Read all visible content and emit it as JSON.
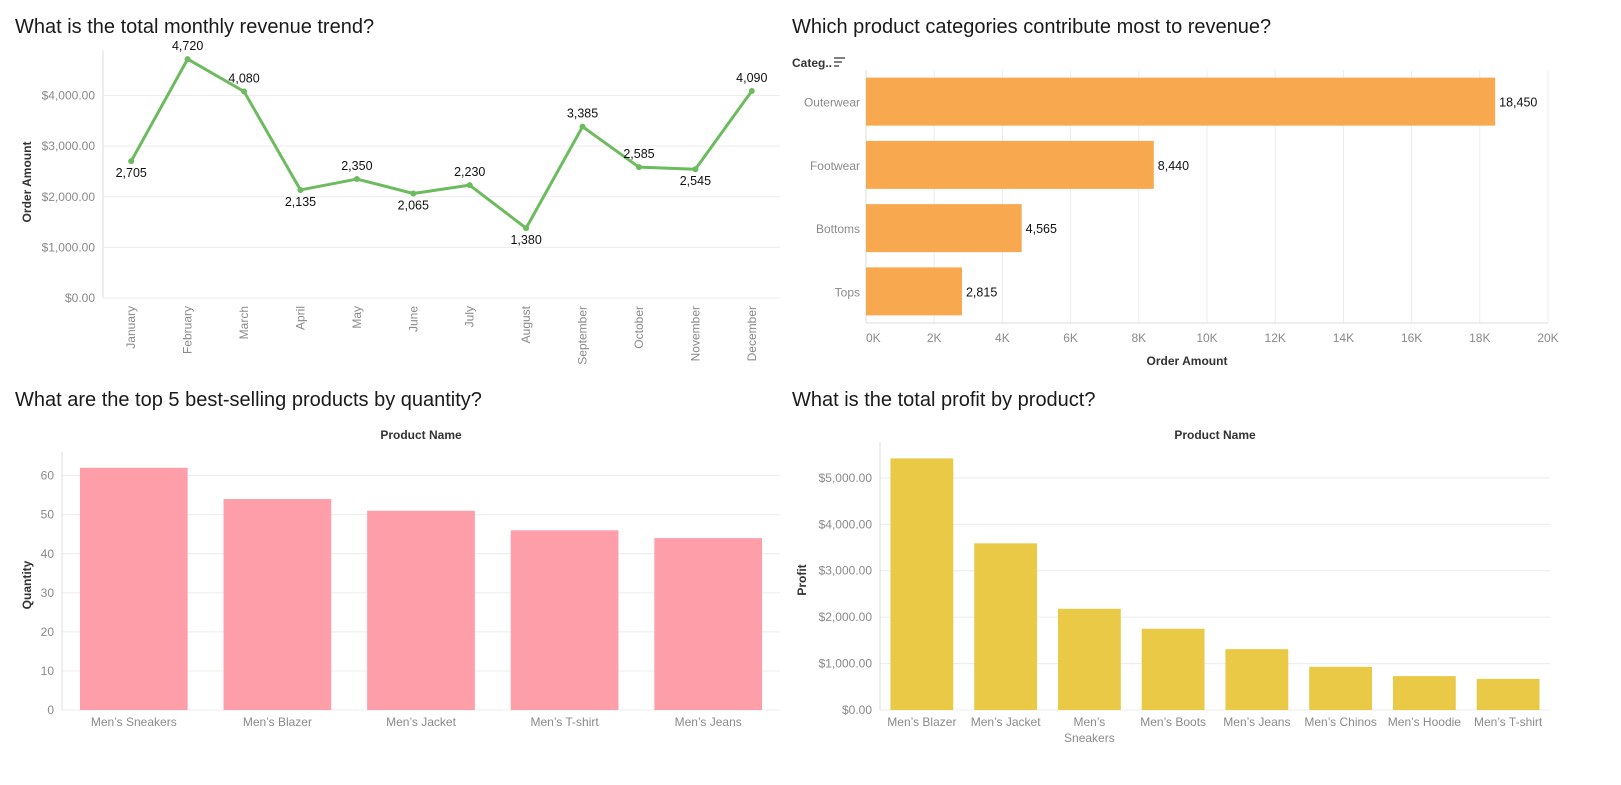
{
  "colors": {
    "line": "#6dbb5f",
    "outerwear": "#f8a84f",
    "quantity": "#fd9ea9",
    "profit": "#eac946",
    "grid": "#ececec",
    "tick": "#8a8a8a"
  },
  "icons": {
    "sort": "sort-descending-icon"
  },
  "chart_data": [
    {
      "type": "line",
      "title": "What is the total monthly revenue trend?",
      "ylabel": "Order Amount",
      "xlabel": "",
      "categories": [
        "January",
        "February",
        "March",
        "April",
        "May",
        "June",
        "July",
        "August",
        "September",
        "October",
        "November",
        "December"
      ],
      "values": [
        2705,
        4720,
        4080,
        2135,
        2350,
        2065,
        2230,
        1380,
        3385,
        2585,
        2545,
        4090
      ],
      "data_labels": [
        "2,705",
        "4,720",
        "4,080",
        "2,135",
        "2,350",
        "2,065",
        "2,230",
        "1,380",
        "3,385",
        "2,585",
        "2,545",
        "4,090"
      ],
      "ylim": [
        0,
        4900
      ],
      "yticks": [
        0,
        1000,
        2000,
        3000,
        4000
      ],
      "ytick_labels": [
        "$0.00",
        "$1,000.00",
        "$2,000.00",
        "$3,000.00",
        "$4,000.00"
      ],
      "grid": true
    },
    {
      "type": "bar",
      "orientation": "horizontal",
      "title": "Which product categories contribute most to revenue?",
      "category_header": "Categ..",
      "xlabel": "Order Amount",
      "categories": [
        "Outerwear",
        "Footwear",
        "Bottoms",
        "Tops"
      ],
      "values": [
        18450,
        8440,
        4565,
        2815
      ],
      "data_labels": [
        "18,450",
        "8,440",
        "4,565",
        "2,815"
      ],
      "xlim": [
        0,
        20000
      ],
      "xticks": [
        0,
        2000,
        4000,
        6000,
        8000,
        10000,
        12000,
        14000,
        16000,
        18000,
        20000
      ],
      "xtick_labels": [
        "0K",
        "2K",
        "4K",
        "6K",
        "8K",
        "10K",
        "12K",
        "14K",
        "16K",
        "18K",
        "20K"
      ],
      "grid": true
    },
    {
      "type": "bar",
      "title": "What are the top 5 best-selling products by quantity?",
      "header": "Product Name",
      "ylabel": "Quantity",
      "categories": [
        "Men’s Sneakers",
        "Men’s Blazer",
        "Men’s Jacket",
        "Men’s T-shirt",
        "Men’s Jeans"
      ],
      "values": [
        62,
        54,
        51,
        46,
        44
      ],
      "ylim": [
        0,
        64
      ],
      "yticks": [
        0,
        10,
        20,
        30,
        40,
        50,
        60
      ],
      "ytick_labels": [
        "0",
        "10",
        "20",
        "30",
        "40",
        "50",
        "60"
      ],
      "grid": true
    },
    {
      "type": "bar",
      "title": "What is the total profit by product?",
      "header": "Product Name",
      "ylabel": "Profit",
      "categories": [
        "Men’s Blazer",
        "Men’s Jacket",
        "Men’s Sneakers",
        "Men’s Boots",
        "Men’s Jeans",
        "Men’s Chinos",
        "Men’s Hoodie",
        "Men’s T-shirt"
      ],
      "values": [
        5420,
        3590,
        2180,
        1750,
        1310,
        930,
        730,
        670
      ],
      "ylim": [
        0,
        5600
      ],
      "yticks": [
        0,
        1000,
        2000,
        3000,
        4000,
        5000
      ],
      "ytick_labels": [
        "$0.00",
        "$1,000.00",
        "$2,000.00",
        "$3,000.00",
        "$4,000.00",
        "$5,000.00"
      ],
      "grid": true
    }
  ]
}
